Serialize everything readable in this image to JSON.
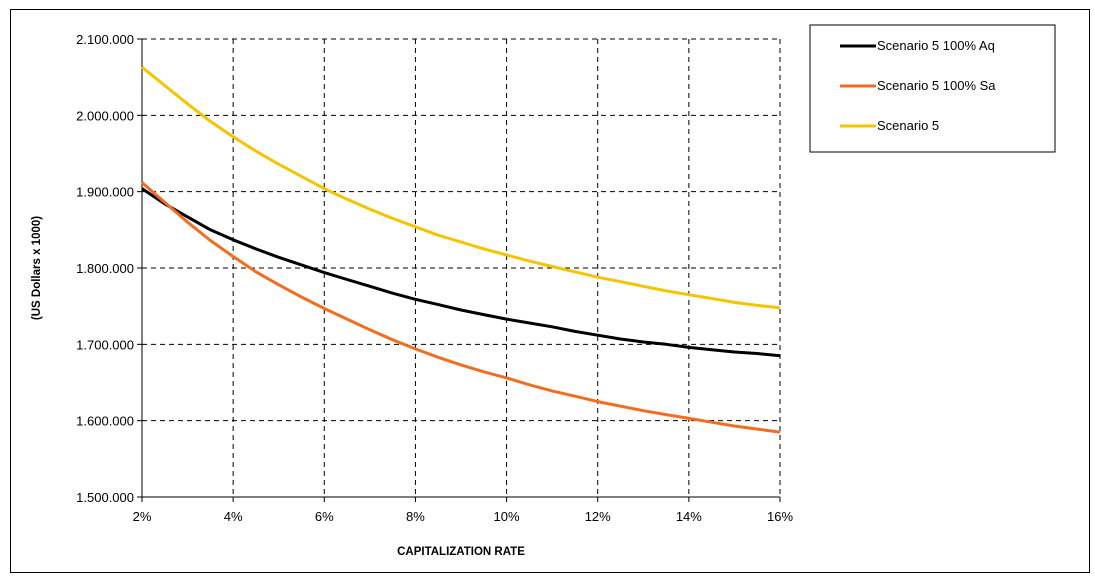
{
  "chart_data": {
    "type": "line",
    "title": "",
    "xlabel": "CAPITALIZATION RATE",
    "ylabel": "(US Dollars x 1000)",
    "x": [
      2,
      2.5,
      3,
      3.5,
      4,
      4.5,
      5,
      5.5,
      6,
      6.5,
      7,
      7.5,
      8,
      8.5,
      9,
      9.5,
      10,
      10.5,
      11,
      11.5,
      12,
      12.5,
      13,
      13.5,
      14,
      14.5,
      15,
      15.5,
      16
    ],
    "xlim": [
      2,
      16
    ],
    "ylim": [
      1500000,
      2100000
    ],
    "x_ticks": [
      2,
      4,
      6,
      8,
      10,
      12,
      14,
      16
    ],
    "x_tick_labels": [
      "2%",
      "4%",
      "6%",
      "8%",
      "10%",
      "12%",
      "14%",
      "16%"
    ],
    "y_ticks": [
      1500000,
      1600000,
      1700000,
      1800000,
      1900000,
      2000000,
      2100000
    ],
    "y_tick_labels": [
      "1.500.000",
      "1.600.000",
      "1.700.000",
      "1.800.000",
      "1.900.000",
      "2.000.000",
      "2.100.000"
    ],
    "grid": true,
    "legend_position": "top-right",
    "series": [
      {
        "name": "Scenario 5 100% Aq",
        "color": "#000000",
        "values": [
          1904000,
          1884000,
          1867000,
          1850000,
          1837000,
          1825000,
          1814000,
          1804000,
          1794000,
          1785000,
          1776000,
          1767000,
          1759000,
          1752000,
          1745000,
          1739000,
          1733000,
          1728000,
          1723000,
          1717000,
          1712000,
          1707000,
          1703000,
          1700000,
          1696000,
          1693000,
          1690000,
          1688000,
          1685000
        ]
      },
      {
        "name": "Scenario 5 100% Sa",
        "color": "#f26d21",
        "values": [
          1912000,
          1886000,
          1860000,
          1836000,
          1815000,
          1795000,
          1778000,
          1762000,
          1747000,
          1733000,
          1719000,
          1706000,
          1694000,
          1683000,
          1673000,
          1664000,
          1656000,
          1647000,
          1639000,
          1632000,
          1625000,
          1619000,
          1613000,
          1608000,
          1603000,
          1598000,
          1593000,
          1589000,
          1585000
        ]
      },
      {
        "name": "Scenario 5",
        "color": "#f5c400",
        "values": [
          2063000,
          2039000,
          2015000,
          1992000,
          1972000,
          1953000,
          1936000,
          1920000,
          1904000,
          1890000,
          1877000,
          1865000,
          1854000,
          1843000,
          1834000,
          1825000,
          1817000,
          1809000,
          1802000,
          1795000,
          1788000,
          1782000,
          1776000,
          1770000,
          1765000,
          1760000,
          1755000,
          1751000,
          1748000
        ]
      }
    ]
  }
}
